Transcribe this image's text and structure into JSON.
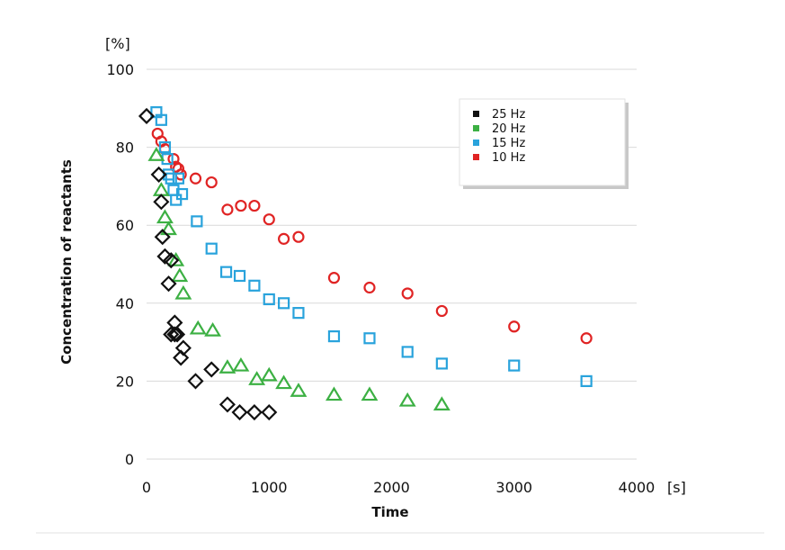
{
  "chart_data": {
    "type": "scatter",
    "title": "",
    "xlabel": "Time",
    "ylabel": "Concentration of reactants",
    "x_unit": "[s]",
    "y_unit": "[%]",
    "xlim": [
      0,
      4000
    ],
    "ylim": [
      0,
      100
    ],
    "x_ticks": [
      "0",
      "1000",
      "2000",
      "3000",
      "4000"
    ],
    "y_ticks": [
      "0",
      "20",
      "40",
      "60",
      "80",
      "100"
    ],
    "grid": "horizontal",
    "legend_position": "top-right",
    "series": [
      {
        "name": "25 Hz",
        "color": "#111111",
        "marker": "diamond",
        "points": [
          [
            0,
            88
          ],
          [
            100,
            73
          ],
          [
            120,
            66
          ],
          [
            130,
            57
          ],
          [
            150,
            52
          ],
          [
            180,
            45
          ],
          [
            200,
            51
          ],
          [
            200,
            32
          ],
          [
            230,
            35
          ],
          [
            230,
            32
          ],
          [
            250,
            32
          ],
          [
            280,
            26
          ],
          [
            300,
            28.5
          ],
          [
            400,
            20
          ],
          [
            530,
            23
          ],
          [
            660,
            14
          ],
          [
            760,
            12
          ],
          [
            880,
            12
          ],
          [
            1000,
            12
          ]
        ]
      },
      {
        "name": "20 Hz",
        "color": "#3cb043",
        "marker": "triangle",
        "points": [
          [
            80,
            78
          ],
          [
            120,
            69
          ],
          [
            150,
            62
          ],
          [
            180,
            59
          ],
          [
            240,
            51
          ],
          [
            270,
            47
          ],
          [
            300,
            42.5
          ],
          [
            420,
            33.5
          ],
          [
            540,
            33
          ],
          [
            660,
            23.5
          ],
          [
            770,
            24
          ],
          [
            900,
            20.5
          ],
          [
            1000,
            21.5
          ],
          [
            1120,
            19.5
          ],
          [
            1240,
            17.5
          ],
          [
            1530,
            16.5
          ],
          [
            1820,
            16.5
          ],
          [
            2130,
            15
          ],
          [
            2410,
            14
          ]
        ]
      },
      {
        "name": "15 Hz",
        "color": "#29a3dc",
        "marker": "square",
        "points": [
          [
            80,
            89
          ],
          [
            120,
            87
          ],
          [
            150,
            80
          ],
          [
            170,
            77
          ],
          [
            180,
            73
          ],
          [
            200,
            72
          ],
          [
            220,
            69
          ],
          [
            240,
            66.5
          ],
          [
            260,
            72
          ],
          [
            290,
            68
          ],
          [
            410,
            61
          ],
          [
            530,
            54
          ],
          [
            650,
            48
          ],
          [
            760,
            47
          ],
          [
            880,
            44.5
          ],
          [
            1000,
            41
          ],
          [
            1120,
            40
          ],
          [
            1240,
            37.5
          ],
          [
            1530,
            31.5
          ],
          [
            1820,
            31
          ],
          [
            2130,
            27.5
          ],
          [
            2410,
            24.5
          ],
          [
            3000,
            24
          ],
          [
            3590,
            20
          ]
        ]
      },
      {
        "name": "10 Hz",
        "color": "#e02424",
        "marker": "circle",
        "points": [
          [
            90,
            83.5
          ],
          [
            120,
            81.5
          ],
          [
            150,
            79.5
          ],
          [
            220,
            77
          ],
          [
            240,
            75
          ],
          [
            260,
            74.5
          ],
          [
            280,
            73
          ],
          [
            400,
            72
          ],
          [
            530,
            71
          ],
          [
            660,
            64
          ],
          [
            770,
            65
          ],
          [
            880,
            65
          ],
          [
            1000,
            61.5
          ],
          [
            1120,
            56.5
          ],
          [
            1240,
            57
          ],
          [
            1530,
            46.5
          ],
          [
            1820,
            44
          ],
          [
            2130,
            42.5
          ],
          [
            2410,
            38
          ],
          [
            3000,
            34
          ],
          [
            3590,
            31
          ]
        ]
      }
    ]
  }
}
